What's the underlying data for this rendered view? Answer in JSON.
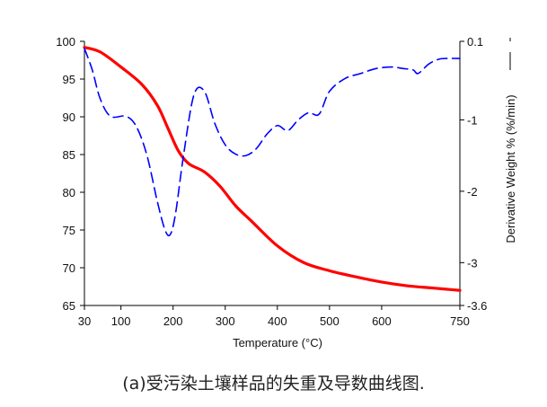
{
  "caption": "(a)受污染土壤样品的失重及导数曲线图.",
  "chart_data": {
    "type": "line",
    "xlabel": "Temperature (°C)",
    "ylabel": "",
    "y2label": "Derivative Weight % (%/min)",
    "xlim": [
      30,
      750
    ],
    "ylim": [
      65,
      100
    ],
    "y2lim": [
      -3.6,
      0.1
    ],
    "x_ticks": [
      "30",
      "100",
      "200",
      "300",
      "400",
      "500",
      "600",
      "750"
    ],
    "y_ticks": [
      "100",
      "95",
      "90",
      "85",
      "80",
      "75",
      "70",
      "65"
    ],
    "y2_ticks": [
      "0.1",
      "-1",
      "-2",
      "-3",
      "-3.6"
    ],
    "grid": false,
    "series": [
      {
        "axis": "left",
        "color": "#ff0000",
        "style": "solid",
        "x": [
          30,
          60,
          100,
          140,
          170,
          190,
          210,
          230,
          260,
          290,
          320,
          350,
          400,
          450,
          500,
          550,
          600,
          650,
          700,
          750
        ],
        "y": [
          99.2,
          98.6,
          96.6,
          94.3,
          91.5,
          88.5,
          85.5,
          83.8,
          82.7,
          80.8,
          78.2,
          76.2,
          72.9,
          70.7,
          69.6,
          68.8,
          68.1,
          67.6,
          67.3,
          67.0
        ]
      },
      {
        "axis": "right",
        "color": "#0000ff",
        "style": "dashed",
        "x": [
          30,
          45,
          60,
          80,
          110,
          130,
          150,
          170,
          185,
          195,
          205,
          220,
          240,
          260,
          280,
          300,
          320,
          340,
          360,
          380,
          400,
          420,
          440,
          460,
          480,
          500,
          530,
          560,
          590,
          620,
          640,
          660,
          670,
          690,
          710,
          730,
          750
        ],
        "y": [
          0.0,
          -0.3,
          -0.7,
          -0.95,
          -0.95,
          -1.1,
          -1.5,
          -2.15,
          -2.55,
          -2.6,
          -2.3,
          -1.5,
          -0.65,
          -0.6,
          -1.05,
          -1.35,
          -1.48,
          -1.5,
          -1.4,
          -1.2,
          -1.08,
          -1.15,
          -1.0,
          -0.9,
          -0.92,
          -0.6,
          -0.42,
          -0.35,
          -0.28,
          -0.26,
          -0.28,
          -0.3,
          -0.35,
          -0.22,
          -0.15,
          -0.14,
          -0.14
        ]
      }
    ]
  }
}
